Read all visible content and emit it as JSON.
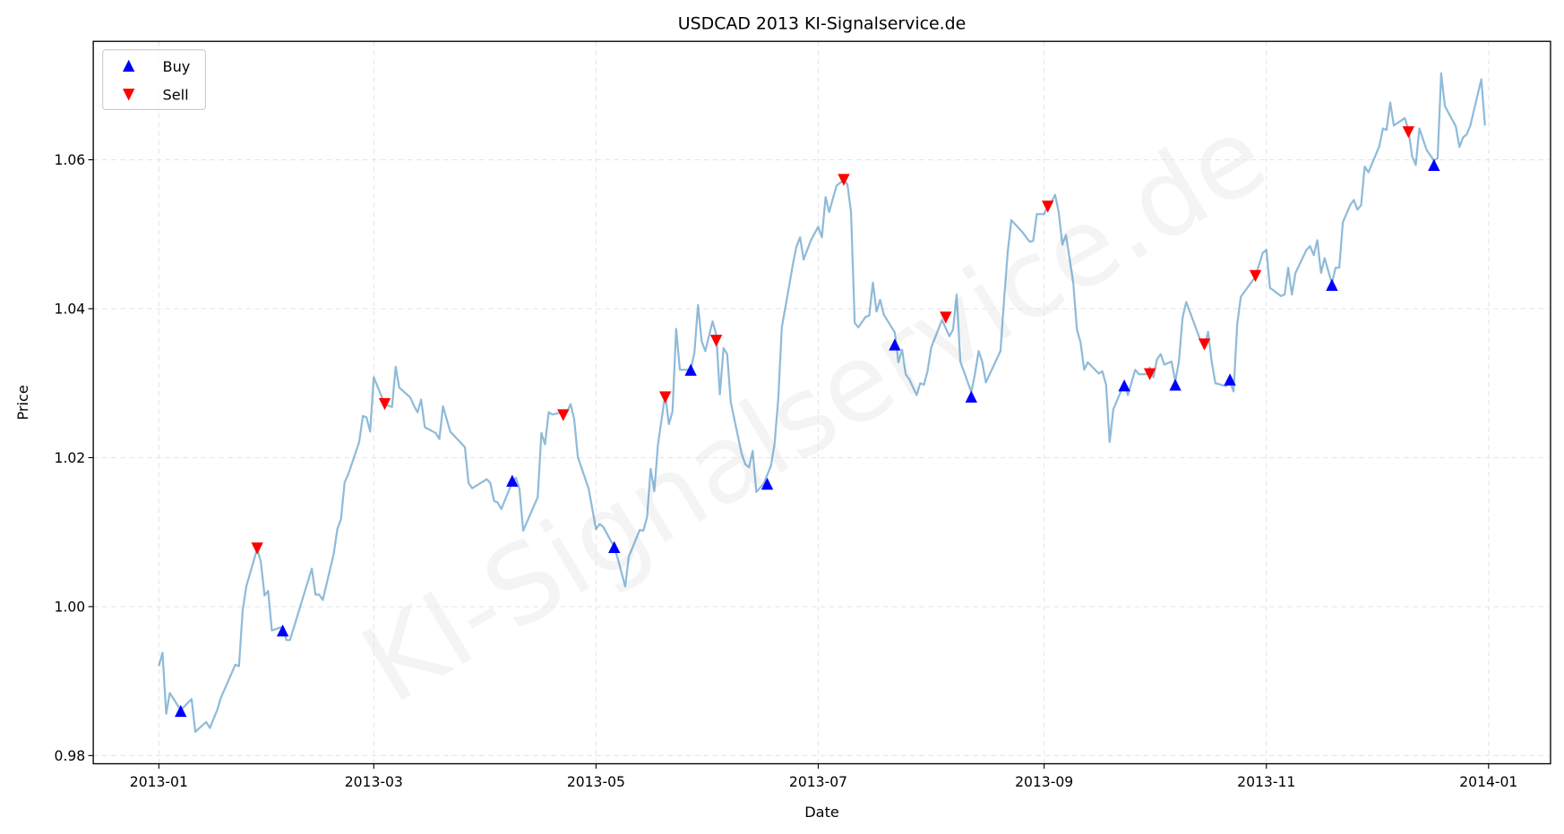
{
  "chart_data": {
    "type": "line",
    "title": "USDCAD 2013 KI-Signalservice.de",
    "xlabel": "Date",
    "ylabel": "Price",
    "watermark": "KI-Signalservice.de",
    "xlim": [
      "2012-12-14",
      "2014-01-18"
    ],
    "ylim": [
      0.9789,
      1.0759
    ],
    "x_ticks": [
      {
        "date": "2013-01-01",
        "label": "2013-01"
      },
      {
        "date": "2013-03-01",
        "label": "2013-03"
      },
      {
        "date": "2013-05-01",
        "label": "2013-05"
      },
      {
        "date": "2013-07-01",
        "label": "2013-07"
      },
      {
        "date": "2013-09-01",
        "label": "2013-09"
      },
      {
        "date": "2013-11-01",
        "label": "2013-11"
      },
      {
        "date": "2014-01-01",
        "label": "2014-01"
      }
    ],
    "y_ticks": [
      {
        "value": 0.98,
        "label": "0.98"
      },
      {
        "value": 1.0,
        "label": "1.00"
      },
      {
        "value": 1.02,
        "label": "1.02"
      },
      {
        "value": 1.04,
        "label": "1.04"
      },
      {
        "value": 1.06,
        "label": "1.06"
      }
    ],
    "grid": true,
    "legend": {
      "placement": "top-left",
      "entries": [
        {
          "name": "Buy",
          "marker": "triangle-up",
          "color": "#0000ff"
        },
        {
          "name": "Sell",
          "marker": "triangle-down",
          "color": "#ff0000"
        }
      ]
    },
    "line_color": "#1f77b4",
    "line_alpha": 0.5,
    "price": [
      [
        "2013-01-01",
        0.992
      ],
      [
        "2013-01-02",
        0.9938
      ],
      [
        "2013-01-03",
        0.9856
      ],
      [
        "2013-01-04",
        0.9884
      ],
      [
        "2013-01-07",
        0.9861
      ],
      [
        "2013-01-10",
        0.9876
      ],
      [
        "2013-01-11",
        0.9832
      ],
      [
        "2013-01-14",
        0.9845
      ],
      [
        "2013-01-15",
        0.9837
      ],
      [
        "2013-01-17",
        0.9861
      ],
      [
        "2013-01-18",
        0.9877
      ],
      [
        "2013-01-22",
        0.9922
      ],
      [
        "2013-01-23",
        0.992
      ],
      [
        "2013-01-24",
        0.9995
      ],
      [
        "2013-01-25",
        1.0027
      ],
      [
        "2013-01-28",
        1.0078
      ],
      [
        "2013-01-29",
        1.006
      ],
      [
        "2013-01-30",
        1.0015
      ],
      [
        "2013-01-31",
        1.0021
      ],
      [
        "2013-02-01",
        0.9968
      ],
      [
        "2013-02-04",
        0.9973
      ],
      [
        "2013-02-05",
        0.9955
      ],
      [
        "2013-02-06",
        0.9955
      ],
      [
        "2013-02-12",
        1.0051
      ],
      [
        "2013-02-13",
        1.0016
      ],
      [
        "2013-02-14",
        1.0016
      ],
      [
        "2013-02-15",
        1.0009
      ],
      [
        "2013-02-18",
        1.0071
      ],
      [
        "2013-02-19",
        1.0104
      ],
      [
        "2013-02-20",
        1.0118
      ],
      [
        "2013-02-21",
        1.0167
      ],
      [
        "2013-02-22",
        1.0178
      ],
      [
        "2013-02-25",
        1.0221
      ],
      [
        "2013-02-26",
        1.0256
      ],
      [
        "2013-02-27",
        1.0254
      ],
      [
        "2013-02-28",
        1.0235
      ],
      [
        "2013-03-01",
        1.0308
      ],
      [
        "2013-03-04",
        1.0272
      ],
      [
        "2013-03-06",
        1.0268
      ],
      [
        "2013-03-07",
        1.0322
      ],
      [
        "2013-03-08",
        1.0294
      ],
      [
        "2013-03-11",
        1.0281
      ],
      [
        "2013-03-12",
        1.027
      ],
      [
        "2013-03-13",
        1.0261
      ],
      [
        "2013-03-14",
        1.0278
      ],
      [
        "2013-03-15",
        1.0241
      ],
      [
        "2013-03-18",
        1.0233
      ],
      [
        "2013-03-19",
        1.0225
      ],
      [
        "2013-03-20",
        1.0269
      ],
      [
        "2013-03-22",
        1.0235
      ],
      [
        "2013-03-26",
        1.0214
      ],
      [
        "2013-03-27",
        1.0166
      ],
      [
        "2013-03-28",
        1.0159
      ],
      [
        "2013-04-01",
        1.0171
      ],
      [
        "2013-04-02",
        1.0166
      ],
      [
        "2013-04-03",
        1.0142
      ],
      [
        "2013-04-04",
        1.014
      ],
      [
        "2013-04-05",
        1.0131
      ],
      [
        "2013-04-08",
        1.0167
      ],
      [
        "2013-04-09",
        1.0173
      ],
      [
        "2013-04-10",
        1.0158
      ],
      [
        "2013-04-11",
        1.0102
      ],
      [
        "2013-04-15",
        1.0147
      ],
      [
        "2013-04-16",
        1.0233
      ],
      [
        "2013-04-17",
        1.0218
      ],
      [
        "2013-04-18",
        1.0261
      ],
      [
        "2013-04-19",
        1.0258
      ],
      [
        "2013-04-22",
        1.0261
      ],
      [
        "2013-04-23",
        1.0261
      ],
      [
        "2013-04-24",
        1.0272
      ],
      [
        "2013-04-25",
        1.0252
      ],
      [
        "2013-04-26",
        1.0201
      ],
      [
        "2013-04-29",
        1.0158
      ],
      [
        "2013-05-01",
        1.0104
      ],
      [
        "2013-05-02",
        1.0111
      ],
      [
        "2013-05-03",
        1.0107
      ],
      [
        "2013-05-06",
        1.008
      ],
      [
        "2013-05-07",
        1.0064
      ],
      [
        "2013-05-09",
        1.0027
      ],
      [
        "2013-05-10",
        1.0067
      ],
      [
        "2013-05-13",
        1.0103
      ],
      [
        "2013-05-14",
        1.0102
      ],
      [
        "2013-05-15",
        1.012
      ],
      [
        "2013-05-16",
        1.0185
      ],
      [
        "2013-05-17",
        1.0155
      ],
      [
        "2013-05-18",
        1.0217
      ],
      [
        "2013-05-20",
        1.0285
      ],
      [
        "2013-05-21",
        1.0245
      ],
      [
        "2013-05-22",
        1.0262
      ],
      [
        "2013-05-23",
        1.0373
      ],
      [
        "2013-05-24",
        1.0318
      ],
      [
        "2013-05-27",
        1.0318
      ],
      [
        "2013-05-28",
        1.0341
      ],
      [
        "2013-05-29",
        1.0405
      ],
      [
        "2013-05-30",
        1.0356
      ],
      [
        "2013-05-31",
        1.0343
      ],
      [
        "2013-06-02",
        1.0383
      ],
      [
        "2013-06-03",
        1.0365
      ],
      [
        "2013-06-04",
        1.0285
      ],
      [
        "2013-06-05",
        1.0347
      ],
      [
        "2013-06-06",
        1.0339
      ],
      [
        "2013-06-07",
        1.0274
      ],
      [
        "2013-06-10",
        1.0205
      ],
      [
        "2013-06-11",
        1.0191
      ],
      [
        "2013-06-12",
        1.0187
      ],
      [
        "2013-06-13",
        1.0209
      ],
      [
        "2013-06-14",
        1.0154
      ],
      [
        "2013-06-16",
        1.0165
      ],
      [
        "2013-06-18",
        1.0189
      ],
      [
        "2013-06-19",
        1.0218
      ],
      [
        "2013-06-20",
        1.0278
      ],
      [
        "2013-06-21",
        1.0375
      ],
      [
        "2013-06-23",
        1.043
      ],
      [
        "2013-06-24",
        1.0459
      ],
      [
        "2013-06-25",
        1.0483
      ],
      [
        "2013-06-26",
        1.0496
      ],
      [
        "2013-06-27",
        1.0466
      ],
      [
        "2013-06-29",
        1.0492
      ],
      [
        "2013-07-01",
        1.051
      ],
      [
        "2013-07-02",
        1.0496
      ],
      [
        "2013-07-03",
        1.055
      ],
      [
        "2013-07-04",
        1.053
      ],
      [
        "2013-07-06",
        1.0565
      ],
      [
        "2013-07-08",
        1.0573
      ],
      [
        "2013-07-09",
        1.0567
      ],
      [
        "2013-07-10",
        1.053
      ],
      [
        "2013-07-11",
        1.0381
      ],
      [
        "2013-07-12",
        1.0375
      ],
      [
        "2013-07-14",
        1.0389
      ],
      [
        "2013-07-15",
        1.0391
      ],
      [
        "2013-07-16",
        1.0435
      ],
      [
        "2013-07-17",
        1.0396
      ],
      [
        "2013-07-18",
        1.0412
      ],
      [
        "2013-07-19",
        1.0392
      ],
      [
        "2013-07-22",
        1.0368
      ],
      [
        "2013-07-23",
        1.0328
      ],
      [
        "2013-07-24",
        1.0345
      ],
      [
        "2013-07-25",
        1.0312
      ],
      [
        "2013-07-26",
        1.0305
      ],
      [
        "2013-07-28",
        1.0284
      ],
      [
        "2013-07-29",
        1.03
      ],
      [
        "2013-07-30",
        1.0298
      ],
      [
        "2013-07-31",
        1.0316
      ],
      [
        "2013-08-01",
        1.0348
      ],
      [
        "2013-08-04",
        1.0385
      ],
      [
        "2013-08-06",
        1.0363
      ],
      [
        "2013-08-07",
        1.0372
      ],
      [
        "2013-08-08",
        1.0419
      ],
      [
        "2013-08-09",
        1.0329
      ],
      [
        "2013-08-12",
        1.0288
      ],
      [
        "2013-08-13",
        1.0312
      ],
      [
        "2013-08-14",
        1.0343
      ],
      [
        "2013-08-15",
        1.0329
      ],
      [
        "2013-08-16",
        1.0301
      ],
      [
        "2013-08-20",
        1.0343
      ],
      [
        "2013-08-21",
        1.0411
      ],
      [
        "2013-08-22",
        1.0476
      ],
      [
        "2013-08-23",
        1.0519
      ],
      [
        "2013-08-26",
        1.0503
      ],
      [
        "2013-08-28",
        1.049
      ],
      [
        "2013-08-29",
        1.0491
      ],
      [
        "2013-08-30",
        1.0527
      ],
      [
        "2013-09-01",
        1.0527
      ],
      [
        "2013-09-02",
        1.0539
      ],
      [
        "2013-09-03",
        1.0543
      ],
      [
        "2013-09-04",
        1.0553
      ],
      [
        "2013-09-05",
        1.053
      ],
      [
        "2013-09-06",
        1.0486
      ],
      [
        "2013-09-07",
        1.0499
      ],
      [
        "2013-09-09",
        1.0435
      ],
      [
        "2013-09-10",
        1.0372
      ],
      [
        "2013-09-11",
        1.0355
      ],
      [
        "2013-09-12",
        1.0318
      ],
      [
        "2013-09-13",
        1.0328
      ],
      [
        "2013-09-16",
        1.0313
      ],
      [
        "2013-09-17",
        1.0316
      ],
      [
        "2013-09-18",
        1.0298
      ],
      [
        "2013-09-19",
        1.0221
      ],
      [
        "2013-09-20",
        1.0265
      ],
      [
        "2013-09-23",
        1.03
      ],
      [
        "2013-09-24",
        1.0284
      ],
      [
        "2013-09-26",
        1.0318
      ],
      [
        "2013-09-27",
        1.0312
      ],
      [
        "2013-09-29",
        1.0312
      ],
      [
        "2013-09-30",
        1.0321
      ],
      [
        "2013-10-01",
        1.0308
      ],
      [
        "2013-10-02",
        1.0332
      ],
      [
        "2013-10-03",
        1.0339
      ],
      [
        "2013-10-04",
        1.0325
      ],
      [
        "2013-10-06",
        1.0329
      ],
      [
        "2013-10-07",
        1.0302
      ],
      [
        "2013-10-08",
        1.0329
      ],
      [
        "2013-10-09",
        1.0388
      ],
      [
        "2013-10-10",
        1.0409
      ],
      [
        "2013-10-14",
        1.0356
      ],
      [
        "2013-10-15",
        1.0348
      ],
      [
        "2013-10-16",
        1.0369
      ],
      [
        "2013-10-17",
        1.0329
      ],
      [
        "2013-10-18",
        1.03
      ],
      [
        "2013-10-21",
        1.0296
      ],
      [
        "2013-10-22",
        1.0302
      ],
      [
        "2013-10-23",
        1.0289
      ],
      [
        "2013-10-24",
        1.0379
      ],
      [
        "2013-10-25",
        1.0416
      ],
      [
        "2013-10-29",
        1.0443
      ],
      [
        "2013-10-30",
        1.0459
      ],
      [
        "2013-10-31",
        1.0475
      ],
      [
        "2013-11-01",
        1.0479
      ],
      [
        "2013-11-02",
        1.0428
      ],
      [
        "2013-11-05",
        1.0417
      ],
      [
        "2013-11-06",
        1.0419
      ],
      [
        "2013-11-07",
        1.0455
      ],
      [
        "2013-11-08",
        1.0419
      ],
      [
        "2013-11-09",
        1.0448
      ],
      [
        "2013-11-12",
        1.0479
      ],
      [
        "2013-11-13",
        1.0484
      ],
      [
        "2013-11-14",
        1.0472
      ],
      [
        "2013-11-15",
        1.0492
      ],
      [
        "2013-11-16",
        1.0448
      ],
      [
        "2013-11-17",
        1.0468
      ],
      [
        "2013-11-19",
        1.0434
      ],
      [
        "2013-11-20",
        1.0455
      ],
      [
        "2013-11-21",
        1.0455
      ],
      [
        "2013-11-22",
        1.0516
      ],
      [
        "2013-11-24",
        1.0539
      ],
      [
        "2013-11-25",
        1.0546
      ],
      [
        "2013-11-26",
        1.0533
      ],
      [
        "2013-11-27",
        1.0539
      ],
      [
        "2013-11-28",
        1.0591
      ],
      [
        "2013-11-29",
        1.0583
      ],
      [
        "2013-12-02",
        1.0618
      ],
      [
        "2013-12-03",
        1.0642
      ],
      [
        "2013-12-04",
        1.064
      ],
      [
        "2013-12-05",
        1.0677
      ],
      [
        "2013-12-06",
        1.0646
      ],
      [
        "2013-12-09",
        1.0656
      ],
      [
        "2013-12-10",
        1.064
      ],
      [
        "2013-12-11",
        1.0605
      ],
      [
        "2013-12-12",
        1.0593
      ],
      [
        "2013-12-13",
        1.0642
      ],
      [
        "2013-12-15",
        1.0613
      ],
      [
        "2013-12-17",
        1.0599
      ],
      [
        "2013-12-18",
        1.0602
      ],
      [
        "2013-12-19",
        1.0716
      ],
      [
        "2013-12-20",
        1.0672
      ],
      [
        "2013-12-23",
        1.0645
      ],
      [
        "2013-12-24",
        1.0617
      ],
      [
        "2013-12-25",
        1.063
      ],
      [
        "2013-12-26",
        1.0634
      ],
      [
        "2013-12-27",
        1.0646
      ],
      [
        "2013-12-30",
        1.0708
      ],
      [
        "2013-12-31",
        1.0646
      ]
    ],
    "buy_signals": [
      [
        "2013-01-07",
        0.986
      ],
      [
        "2013-02-04",
        0.9968
      ],
      [
        "2013-04-08",
        1.0169
      ],
      [
        "2013-05-06",
        1.008
      ],
      [
        "2013-05-27",
        1.0318
      ],
      [
        "2013-06-17",
        1.0165
      ],
      [
        "2013-07-22",
        1.0352
      ],
      [
        "2013-08-12",
        1.0282
      ],
      [
        "2013-09-23",
        1.0297
      ],
      [
        "2013-10-07",
        1.0298
      ],
      [
        "2013-10-22",
        1.0305
      ],
      [
        "2013-11-19",
        1.0432
      ],
      [
        "2013-12-17",
        1.0593
      ]
    ],
    "sell_signals": [
      [
        "2013-01-28",
        1.0078
      ],
      [
        "2013-03-04",
        1.0272
      ],
      [
        "2013-04-22",
        1.0257
      ],
      [
        "2013-05-20",
        1.0281
      ],
      [
        "2013-06-03",
        1.0357
      ],
      [
        "2013-07-08",
        1.0573
      ],
      [
        "2013-08-05",
        1.0388
      ],
      [
        "2013-09-02",
        1.0537
      ],
      [
        "2013-09-30",
        1.0312
      ],
      [
        "2013-10-15",
        1.0352
      ],
      [
        "2013-10-29",
        1.0444
      ],
      [
        "2013-12-10",
        1.0637
      ]
    ]
  }
}
